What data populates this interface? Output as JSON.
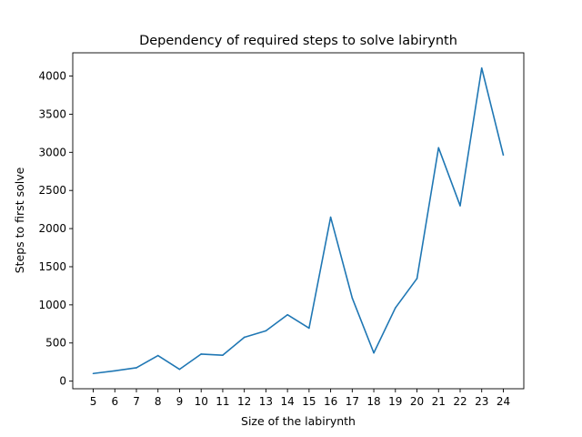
{
  "chart_data": {
    "type": "line",
    "title": "Dependency of required steps to solve labirynth",
    "xlabel": "Size of the labirynth",
    "ylabel": "Steps to first solve",
    "x": [
      5,
      6,
      7,
      8,
      9,
      10,
      11,
      12,
      13,
      14,
      15,
      16,
      17,
      18,
      19,
      20,
      21,
      22,
      23,
      24
    ],
    "series": [
      {
        "values": [
          100,
          135,
          175,
          335,
          155,
          355,
          340,
          575,
          660,
          870,
          695,
          2150,
          1090,
          370,
          960,
          1345,
          3060,
          2300,
          4105,
          2965
        ],
        "color": "#1f77b4"
      }
    ],
    "xticks": [
      "5",
      "6",
      "7",
      "8",
      "9",
      "10",
      "11",
      "12",
      "13",
      "14",
      "15",
      "16",
      "17",
      "18",
      "19",
      "20",
      "21",
      "22",
      "23",
      "24"
    ],
    "yticks": [
      "0",
      "500",
      "1000",
      "1500",
      "2000",
      "2500",
      "3000",
      "3500",
      "4000"
    ],
    "ytick_values": [
      0,
      500,
      1000,
      1500,
      2000,
      2500,
      3000,
      3500,
      4000
    ],
    "xlim": [
      4.05,
      24.95
    ],
    "ylim": [
      -100,
      4305
    ],
    "grid": false
  }
}
